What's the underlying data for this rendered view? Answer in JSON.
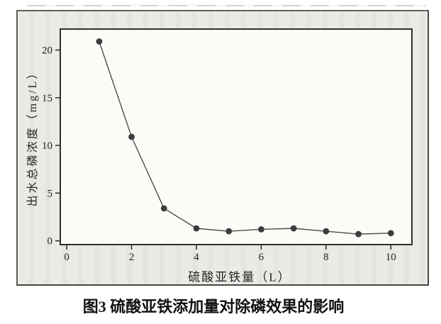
{
  "figure": {
    "caption": "图3 硫酸亚铁添加量对除磷效果的影响"
  },
  "chart_data": {
    "type": "line",
    "title": "",
    "xlabel": "硫酸亚铁量（L）",
    "ylabel": "出水总磷浓度（mg/L）",
    "x": [
      1,
      2,
      3,
      4,
      5,
      6,
      7,
      8,
      9,
      10
    ],
    "y": [
      20.9,
      10.9,
      3.4,
      1.3,
      1.0,
      1.2,
      1.3,
      1.0,
      0.7,
      0.8
    ],
    "xticks": [
      0,
      2,
      4,
      6,
      8,
      10
    ],
    "yticks": [
      0,
      5,
      10,
      15,
      20
    ],
    "xlim": [
      -0.2,
      10.65
    ],
    "ylim": [
      -0.4,
      22.2
    ],
    "grid": false,
    "legend": null,
    "colors": {
      "line": "#4d4d4d",
      "marker": "#3c3c3c",
      "axis": "#2e2e2e",
      "plot_bg": "#fbfbf8",
      "frame_bg": "#e9ebe5"
    }
  }
}
